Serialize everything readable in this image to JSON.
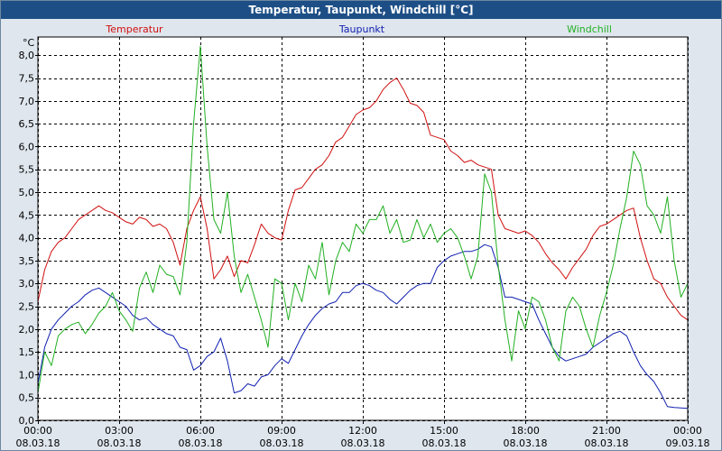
{
  "window": {
    "title": "Temperatur, Taupunkt, Windchill [°C]"
  },
  "colors": {
    "temperature": "#d01010",
    "dewpoint": "#1020b0",
    "windchill": "#22b022",
    "grid": "#000000",
    "plot_bg": "#ffffff"
  },
  "chart_data": {
    "type": "line",
    "title": "Temperatur, Taupunkt, Windchill [°C]",
    "ylabel": "°C",
    "ylim": [
      0,
      8.4
    ],
    "yticks": [
      "0,0",
      "0,5",
      "1,0",
      "1,5",
      "2,0",
      "2,5",
      "3,0",
      "3,5",
      "4,0",
      "4,5",
      "5,0",
      "5,5",
      "6,0",
      "6,5",
      "7,0",
      "7,5",
      "8,0"
    ],
    "xlim": [
      0,
      24
    ],
    "xticks": [
      {
        "time": "00:00",
        "date": "08.03.18"
      },
      {
        "time": "03:00",
        "date": "08.03.18"
      },
      {
        "time": "06:00",
        "date": "08.03.18"
      },
      {
        "time": "09:00",
        "date": "08.03.18"
      },
      {
        "time": "12:00",
        "date": "08.03.18"
      },
      {
        "time": "15:00",
        "date": "08.03.18"
      },
      {
        "time": "18:00",
        "date": "08.03.18"
      },
      {
        "time": "21:00",
        "date": "08.03.18"
      },
      {
        "time": "00:00",
        "date": "09.03.18"
      }
    ],
    "series": [
      {
        "name": "Temperatur",
        "x": [
          0,
          0.25,
          0.5,
          0.75,
          1,
          1.25,
          1.5,
          1.75,
          2,
          2.25,
          2.5,
          2.75,
          3,
          3.25,
          3.5,
          3.75,
          4,
          4.25,
          4.5,
          4.75,
          5,
          5.25,
          5.5,
          5.75,
          6,
          6.25,
          6.5,
          6.75,
          7,
          7.25,
          7.5,
          7.75,
          8,
          8.25,
          8.5,
          8.75,
          9,
          9.25,
          9.5,
          9.75,
          10,
          10.25,
          10.5,
          10.75,
          11,
          11.25,
          11.5,
          11.75,
          12,
          12.25,
          12.5,
          12.75,
          13,
          13.25,
          13.5,
          13.75,
          14,
          14.25,
          14.5,
          14.75,
          15,
          15.25,
          15.5,
          15.75,
          16,
          16.25,
          16.5,
          16.75,
          17,
          17.25,
          17.5,
          17.75,
          18,
          18.25,
          18.5,
          18.75,
          19,
          19.25,
          19.5,
          19.75,
          20,
          20.25,
          20.5,
          20.75,
          21,
          21.25,
          21.5,
          21.75,
          22,
          22.25,
          22.5,
          22.75,
          23,
          23.25,
          23.5,
          23.75,
          24
        ],
        "values": [
          2.6,
          3.3,
          3.7,
          3.9,
          4.0,
          4.2,
          4.4,
          4.5,
          4.6,
          4.7,
          4.6,
          4.55,
          4.45,
          4.35,
          4.3,
          4.45,
          4.4,
          4.25,
          4.3,
          4.2,
          3.9,
          3.4,
          4.2,
          4.6,
          4.9,
          4.2,
          3.1,
          3.3,
          3.6,
          3.15,
          3.5,
          3.45,
          3.85,
          4.3,
          4.1,
          4.0,
          3.95,
          4.6,
          5.05,
          5.1,
          5.3,
          5.5,
          5.6,
          5.8,
          6.1,
          6.2,
          6.45,
          6.7,
          6.8,
          6.85,
          7.0,
          7.25,
          7.4,
          7.5,
          7.25,
          6.95,
          6.9,
          6.75,
          6.25,
          6.2,
          6.15,
          5.9,
          5.8,
          5.65,
          5.7,
          5.6,
          5.55,
          5.5,
          4.5,
          4.2,
          4.15,
          4.1,
          4.15,
          4.05,
          3.9,
          3.65,
          3.45,
          3.3,
          3.1,
          3.35,
          3.55,
          3.75,
          4.05,
          4.25,
          4.3,
          4.4,
          4.5,
          4.6,
          4.65,
          4.0,
          3.5,
          3.1,
          3.0,
          2.7,
          2.5,
          2.3,
          2.2
        ]
      },
      {
        "name": "Taupunkt",
        "x": [
          0,
          0.25,
          0.5,
          0.75,
          1,
          1.25,
          1.5,
          1.75,
          2,
          2.25,
          2.5,
          2.75,
          3,
          3.25,
          3.5,
          3.75,
          4,
          4.25,
          4.5,
          4.75,
          5,
          5.25,
          5.5,
          5.75,
          6,
          6.25,
          6.5,
          6.75,
          7,
          7.25,
          7.5,
          7.75,
          8,
          8.25,
          8.5,
          8.75,
          9,
          9.25,
          9.5,
          9.75,
          10,
          10.25,
          10.5,
          10.75,
          11,
          11.25,
          11.5,
          11.75,
          12,
          12.25,
          12.5,
          12.75,
          13,
          13.25,
          13.5,
          13.75,
          14,
          14.25,
          14.5,
          14.75,
          15,
          15.25,
          15.5,
          15.75,
          16,
          16.25,
          16.5,
          16.75,
          17,
          17.25,
          17.5,
          17.75,
          18,
          18.25,
          18.5,
          18.75,
          19,
          19.25,
          19.5,
          19.75,
          20,
          20.25,
          20.5,
          20.75,
          21,
          21.25,
          21.5,
          21.75,
          22,
          22.25,
          22.5,
          22.75,
          23,
          23.25,
          23.5,
          23.75,
          24
        ],
        "values": [
          0.8,
          1.6,
          2.0,
          2.2,
          2.35,
          2.5,
          2.6,
          2.75,
          2.85,
          2.9,
          2.8,
          2.7,
          2.6,
          2.5,
          2.3,
          2.2,
          2.25,
          2.1,
          2.0,
          1.9,
          1.85,
          1.6,
          1.55,
          1.1,
          1.2,
          1.4,
          1.5,
          1.8,
          1.3,
          0.6,
          0.65,
          0.8,
          0.75,
          0.95,
          1.0,
          1.2,
          1.35,
          1.25,
          1.55,
          1.85,
          2.1,
          2.3,
          2.45,
          2.55,
          2.6,
          2.8,
          2.8,
          2.95,
          3.0,
          2.95,
          2.85,
          2.8,
          2.65,
          2.55,
          2.7,
          2.85,
          2.95,
          3.0,
          3.0,
          3.35,
          3.5,
          3.6,
          3.65,
          3.7,
          3.7,
          3.75,
          3.85,
          3.8,
          3.35,
          2.7,
          2.7,
          2.65,
          2.6,
          2.55,
          2.2,
          1.9,
          1.6,
          1.4,
          1.3,
          1.35,
          1.4,
          1.45,
          1.6,
          1.7,
          1.8,
          1.9,
          1.95,
          1.85,
          1.5,
          1.2,
          1.0,
          0.85,
          0.6,
          0.3,
          0.28,
          0.27,
          0.26
        ]
      },
      {
        "name": "Windchill",
        "x": [
          0,
          0.25,
          0.5,
          0.75,
          1,
          1.25,
          1.5,
          1.75,
          2,
          2.25,
          2.5,
          2.75,
          3,
          3.25,
          3.5,
          3.75,
          4,
          4.25,
          4.5,
          4.75,
          5,
          5.25,
          5.5,
          5.75,
          6,
          6.25,
          6.5,
          6.75,
          7,
          7.25,
          7.5,
          7.75,
          8,
          8.25,
          8.5,
          8.75,
          9,
          9.25,
          9.5,
          9.75,
          10,
          10.25,
          10.5,
          10.75,
          11,
          11.25,
          11.5,
          11.75,
          12,
          12.25,
          12.5,
          12.75,
          13,
          13.25,
          13.5,
          13.75,
          14,
          14.25,
          14.5,
          14.75,
          15,
          15.25,
          15.5,
          15.75,
          16,
          16.25,
          16.5,
          16.75,
          17,
          17.25,
          17.5,
          17.75,
          18,
          18.25,
          18.5,
          18.75,
          19,
          19.25,
          19.5,
          19.75,
          20,
          20.25,
          20.5,
          20.75,
          21,
          21.25,
          21.5,
          21.75,
          22,
          22.25,
          22.5,
          22.75,
          23,
          23.25,
          23.5,
          23.75,
          24
        ],
        "values": [
          0.6,
          1.5,
          1.2,
          1.85,
          2.0,
          2.1,
          2.15,
          1.9,
          2.1,
          2.35,
          2.5,
          2.8,
          2.4,
          2.2,
          1.95,
          2.9,
          3.25,
          2.8,
          3.4,
          3.2,
          3.15,
          2.75,
          3.9,
          6.5,
          8.2,
          6.0,
          4.4,
          4.1,
          5.0,
          3.6,
          2.8,
          3.2,
          2.7,
          2.2,
          1.6,
          3.1,
          3.0,
          2.2,
          3.0,
          2.6,
          3.4,
          3.1,
          3.9,
          2.75,
          3.5,
          3.9,
          3.7,
          4.3,
          4.1,
          4.4,
          4.4,
          4.7,
          4.1,
          4.4,
          3.9,
          3.95,
          4.4,
          4.0,
          4.3,
          3.9,
          4.1,
          4.2,
          4.0,
          3.6,
          3.1,
          3.6,
          5.4,
          5.0,
          3.4,
          2.2,
          1.3,
          2.4,
          2.0,
          2.7,
          2.6,
          2.2,
          1.6,
          1.3,
          2.4,
          2.7,
          2.5,
          2.0,
          1.6,
          2.3,
          2.8,
          3.4,
          4.2,
          4.9,
          5.9,
          5.6,
          4.7,
          4.5,
          4.1,
          4.9,
          3.5,
          2.7,
          3.0
        ]
      }
    ]
  }
}
